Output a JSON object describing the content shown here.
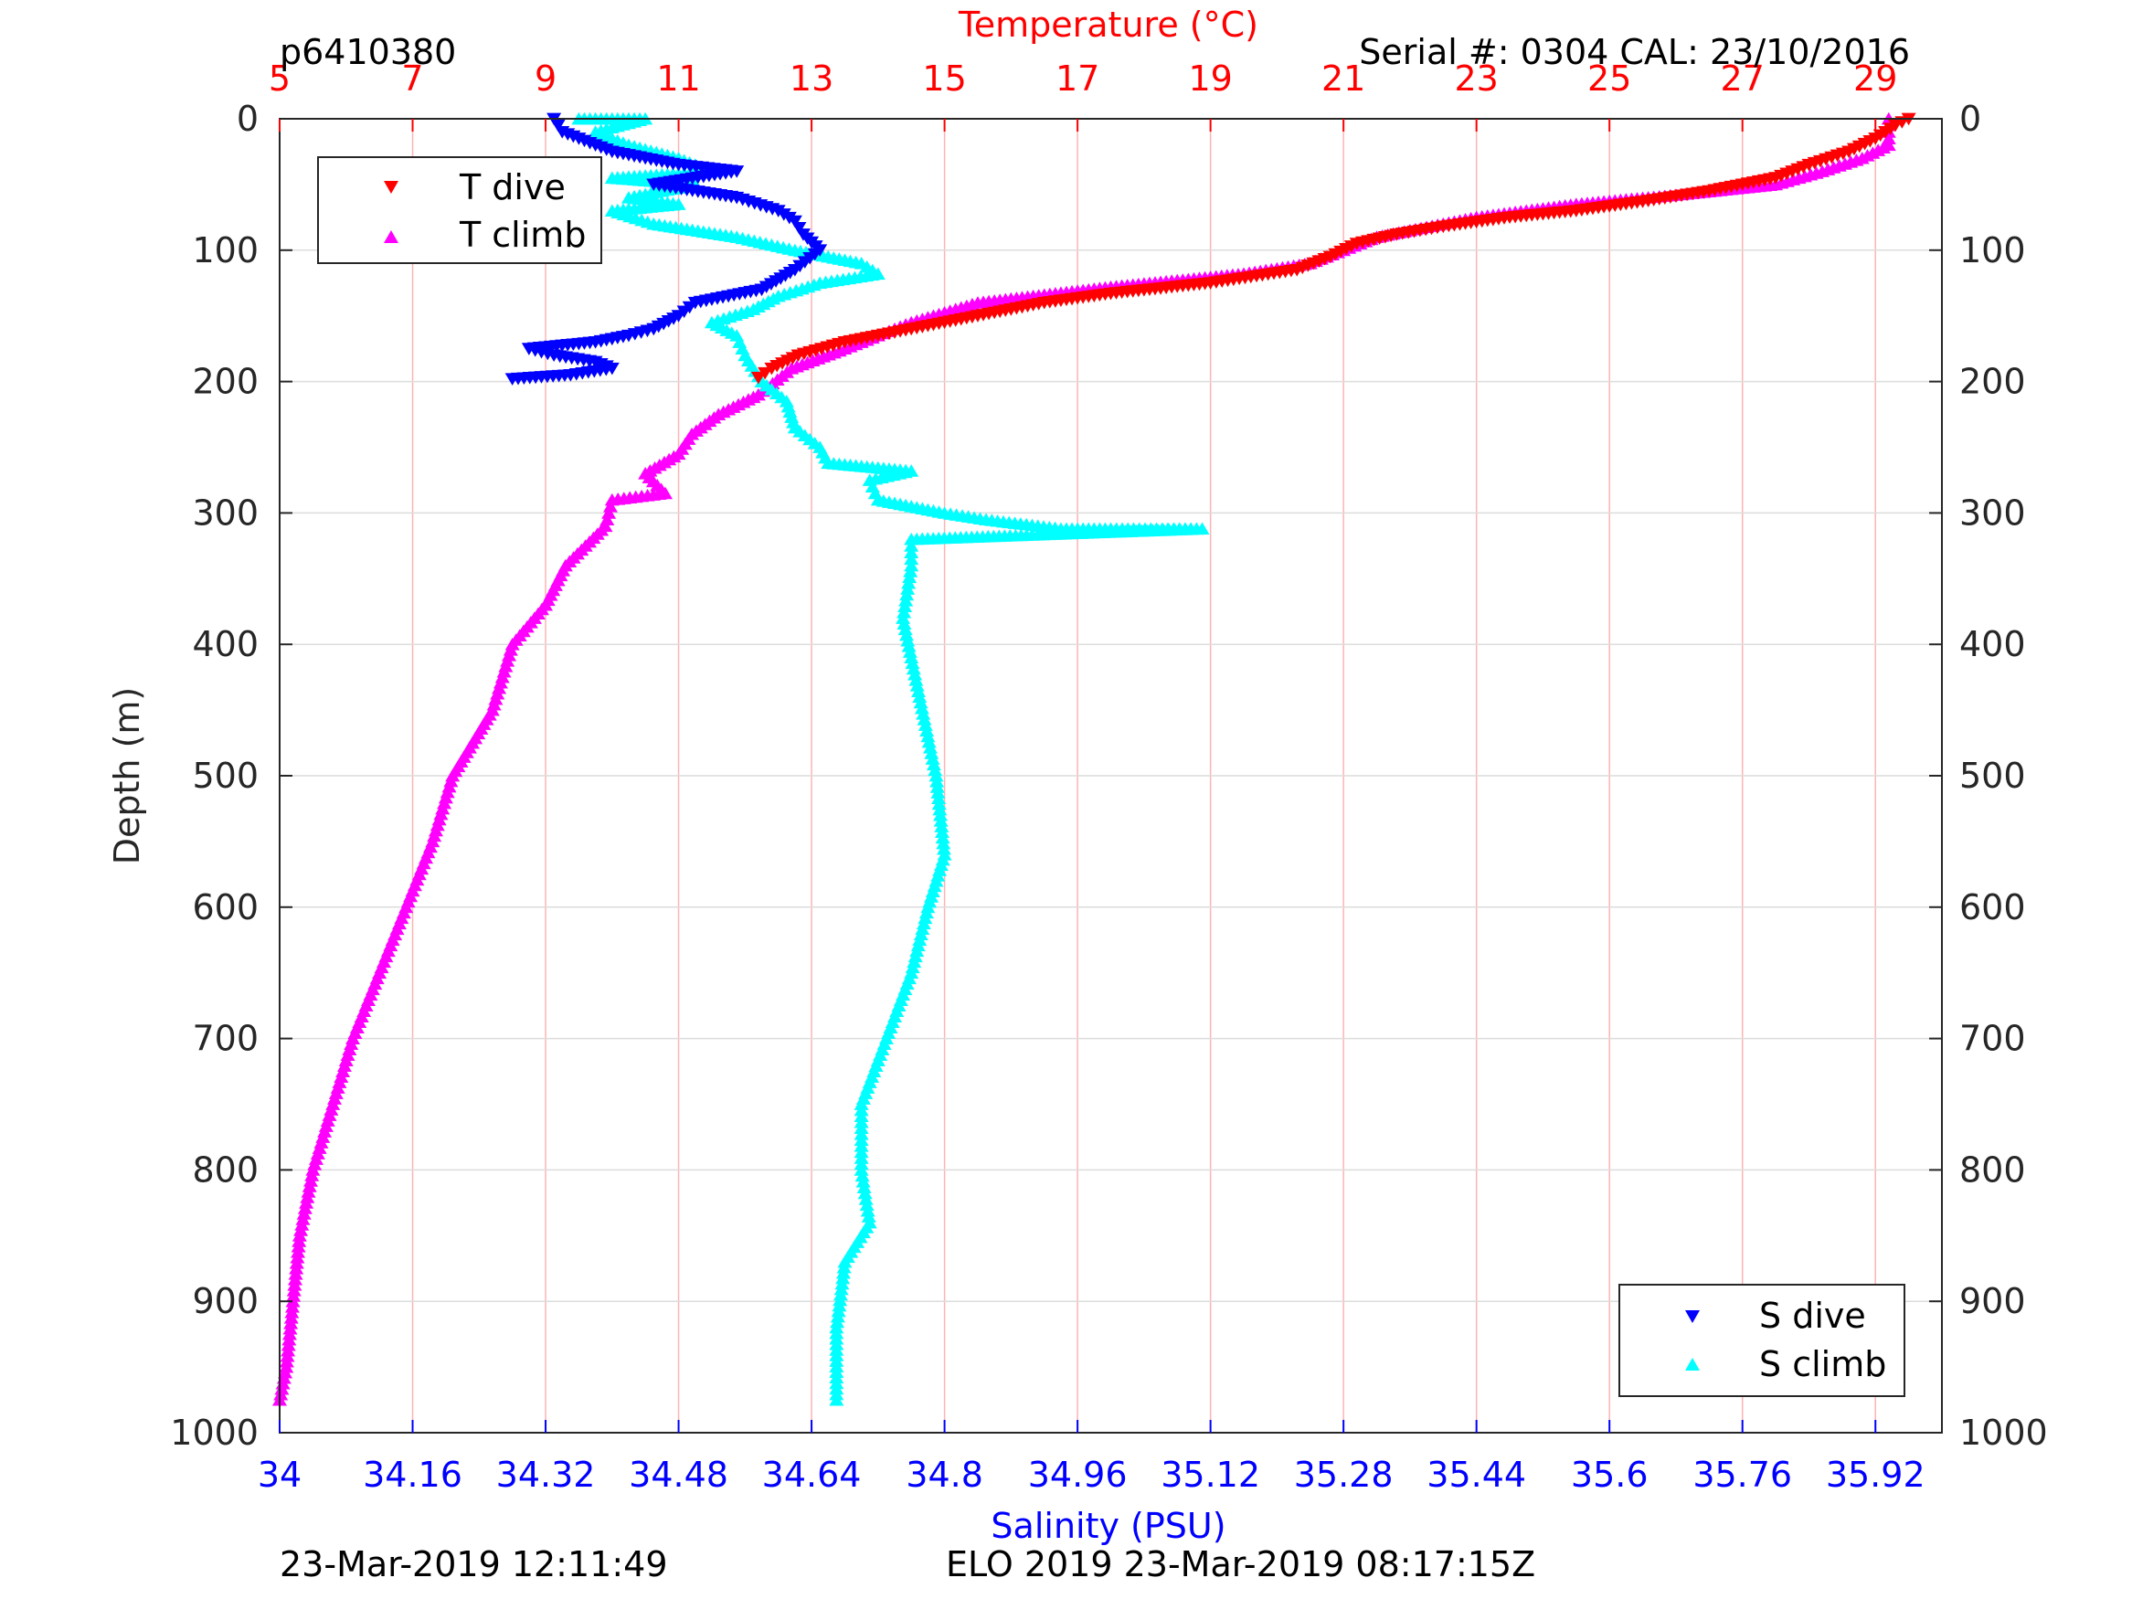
{
  "header": {
    "left_label": "p6410380",
    "right_label": "Serial #: 0304  CAL: 23/10/2016"
  },
  "footer": {
    "left_label": "23-Mar-2019 12:11:49",
    "right_label": "ELO 2019 23-Mar-2019 08:17:15Z"
  },
  "colors": {
    "t_dive": "#ff0000",
    "t_climb": "#ff00ff",
    "s_dive": "#0000ff",
    "s_climb": "#00ffff",
    "temp_axis": "#ff0000",
    "sal_axis": "#0000ff",
    "grid": "#ffb3b3"
  },
  "chart_data": {
    "type": "scatter",
    "title": "",
    "y_axis": {
      "label": "Depth (m)",
      "range": [
        0,
        1000
      ],
      "reversed": true,
      "ticks": [
        "0",
        "100",
        "200",
        "300",
        "400",
        "500",
        "600",
        "700",
        "800",
        "900",
        "1000"
      ]
    },
    "temperature_axis": {
      "label": "Temperature (°C)",
      "position": "top",
      "range": [
        5,
        30
      ],
      "ticks": [
        "5",
        "7",
        "9",
        "11",
        "13",
        "15",
        "17",
        "19",
        "21",
        "23",
        "25",
        "27",
        "29"
      ]
    },
    "salinity_axis": {
      "label": "Salinity (PSU)",
      "position": "bottom",
      "range": [
        34,
        36
      ],
      "ticks": [
        "34",
        "34.16",
        "34.32",
        "34.48",
        "34.64",
        "34.8",
        "34.96",
        "35.12",
        "35.28",
        "35.44",
        "35.6",
        "35.76",
        "35.92"
      ]
    },
    "grid": "vertical lines at temperature ticks, horizontal lines at depth ticks",
    "legends": [
      {
        "placement": "top-left",
        "entries": [
          "T dive",
          "T climb"
        ]
      },
      {
        "placement": "bottom-right",
        "entries": [
          "S dive",
          "S climb"
        ]
      }
    ],
    "series": [
      {
        "name": "T dive",
        "axis": "temperature",
        "marker": "triangle-down",
        "points": [
          [
            29.5,
            0
          ],
          [
            29.3,
            5
          ],
          [
            29.0,
            15
          ],
          [
            28.6,
            25
          ],
          [
            28.0,
            35
          ],
          [
            27.5,
            45
          ],
          [
            26.5,
            55
          ],
          [
            25.5,
            63
          ],
          [
            24.5,
            70
          ],
          [
            23.5,
            75
          ],
          [
            22.5,
            82
          ],
          [
            21.8,
            88
          ],
          [
            21.2,
            95
          ],
          [
            20.8,
            105
          ],
          [
            20.3,
            115
          ],
          [
            19.0,
            125
          ],
          [
            17.5,
            133
          ],
          [
            16.5,
            140
          ],
          [
            15.5,
            150
          ],
          [
            14.5,
            160
          ],
          [
            13.5,
            170
          ],
          [
            12.8,
            180
          ],
          [
            12.4,
            190
          ],
          [
            12.2,
            197
          ]
        ]
      },
      {
        "name": "T climb",
        "axis": "temperature",
        "marker": "triangle-up",
        "points": [
          [
            29.2,
            0
          ],
          [
            29.2,
            10
          ],
          [
            29.2,
            20
          ],
          [
            28.8,
            30
          ],
          [
            28.2,
            40
          ],
          [
            27.5,
            50
          ],
          [
            26.0,
            58
          ],
          [
            24.5,
            65
          ],
          [
            23.0,
            75
          ],
          [
            21.5,
            90
          ],
          [
            21.0,
            100
          ],
          [
            20.5,
            110
          ],
          [
            19.5,
            118
          ],
          [
            17.5,
            128
          ],
          [
            15.5,
            140
          ],
          [
            14.5,
            155
          ],
          [
            14.0,
            165
          ],
          [
            13.5,
            175
          ],
          [
            12.7,
            190
          ],
          [
            12.2,
            210
          ],
          [
            11.6,
            225
          ],
          [
            11.2,
            240
          ],
          [
            11.0,
            255
          ],
          [
            10.5,
            270
          ],
          [
            10.8,
            285
          ],
          [
            10.0,
            290
          ],
          [
            9.9,
            310
          ],
          [
            9.3,
            340
          ],
          [
            9.0,
            370
          ],
          [
            8.5,
            400
          ],
          [
            8.2,
            450
          ],
          [
            7.6,
            500
          ],
          [
            7.3,
            550
          ],
          [
            6.9,
            600
          ],
          [
            6.5,
            650
          ],
          [
            6.1,
            700
          ],
          [
            5.8,
            750
          ],
          [
            5.5,
            800
          ],
          [
            5.3,
            850
          ],
          [
            5.2,
            900
          ],
          [
            5.1,
            950
          ],
          [
            5.0,
            975
          ]
        ]
      },
      {
        "name": "S dive",
        "axis": "salinity",
        "marker": "triangle-down",
        "points": [
          [
            34.33,
            0
          ],
          [
            34.34,
            10
          ],
          [
            34.4,
            25
          ],
          [
            34.48,
            35
          ],
          [
            34.55,
            40
          ],
          [
            34.45,
            50
          ],
          [
            34.55,
            60
          ],
          [
            34.6,
            70
          ],
          [
            34.62,
            78
          ],
          [
            34.63,
            88
          ],
          [
            34.65,
            100
          ],
          [
            34.62,
            115
          ],
          [
            34.58,
            130
          ],
          [
            34.5,
            140
          ],
          [
            34.48,
            150
          ],
          [
            34.45,
            160
          ],
          [
            34.42,
            165
          ],
          [
            34.38,
            170
          ],
          [
            34.3,
            175
          ],
          [
            34.33,
            180
          ],
          [
            34.38,
            185
          ],
          [
            34.4,
            190
          ],
          [
            34.35,
            195
          ],
          [
            34.28,
            198
          ]
        ]
      },
      {
        "name": "S climb",
        "axis": "salinity",
        "marker": "triangle-up",
        "points": [
          [
            34.36,
            0
          ],
          [
            34.44,
            0
          ],
          [
            34.38,
            10
          ],
          [
            34.42,
            20
          ],
          [
            34.48,
            30
          ],
          [
            34.52,
            40
          ],
          [
            34.4,
            45
          ],
          [
            34.5,
            50
          ],
          [
            34.42,
            60
          ],
          [
            34.48,
            65
          ],
          [
            34.4,
            70
          ],
          [
            34.45,
            80
          ],
          [
            34.55,
            90
          ],
          [
            34.62,
            100
          ],
          [
            34.7,
            110
          ],
          [
            34.72,
            118
          ],
          [
            34.65,
            125
          ],
          [
            34.6,
            135
          ],
          [
            34.57,
            145
          ],
          [
            34.52,
            155
          ],
          [
            34.55,
            165
          ],
          [
            34.56,
            180
          ],
          [
            34.58,
            200
          ],
          [
            34.61,
            215
          ],
          [
            34.62,
            235
          ],
          [
            34.65,
            250
          ],
          [
            34.66,
            262
          ],
          [
            34.76,
            268
          ],
          [
            34.71,
            275
          ],
          [
            34.72,
            290
          ],
          [
            34.8,
            300
          ],
          [
            34.85,
            305
          ],
          [
            34.94,
            312
          ],
          [
            35.0,
            312
          ],
          [
            35.11,
            312
          ],
          [
            34.76,
            320
          ],
          [
            34.76,
            340
          ],
          [
            34.75,
            380
          ],
          [
            34.77,
            440
          ],
          [
            34.79,
            500
          ],
          [
            34.8,
            560
          ],
          [
            34.78,
            600
          ],
          [
            34.76,
            650
          ],
          [
            34.73,
            700
          ],
          [
            34.7,
            750
          ],
          [
            34.7,
            800
          ],
          [
            34.71,
            840
          ],
          [
            34.68,
            870
          ],
          [
            34.67,
            920
          ],
          [
            34.67,
            975
          ]
        ]
      }
    ]
  }
}
